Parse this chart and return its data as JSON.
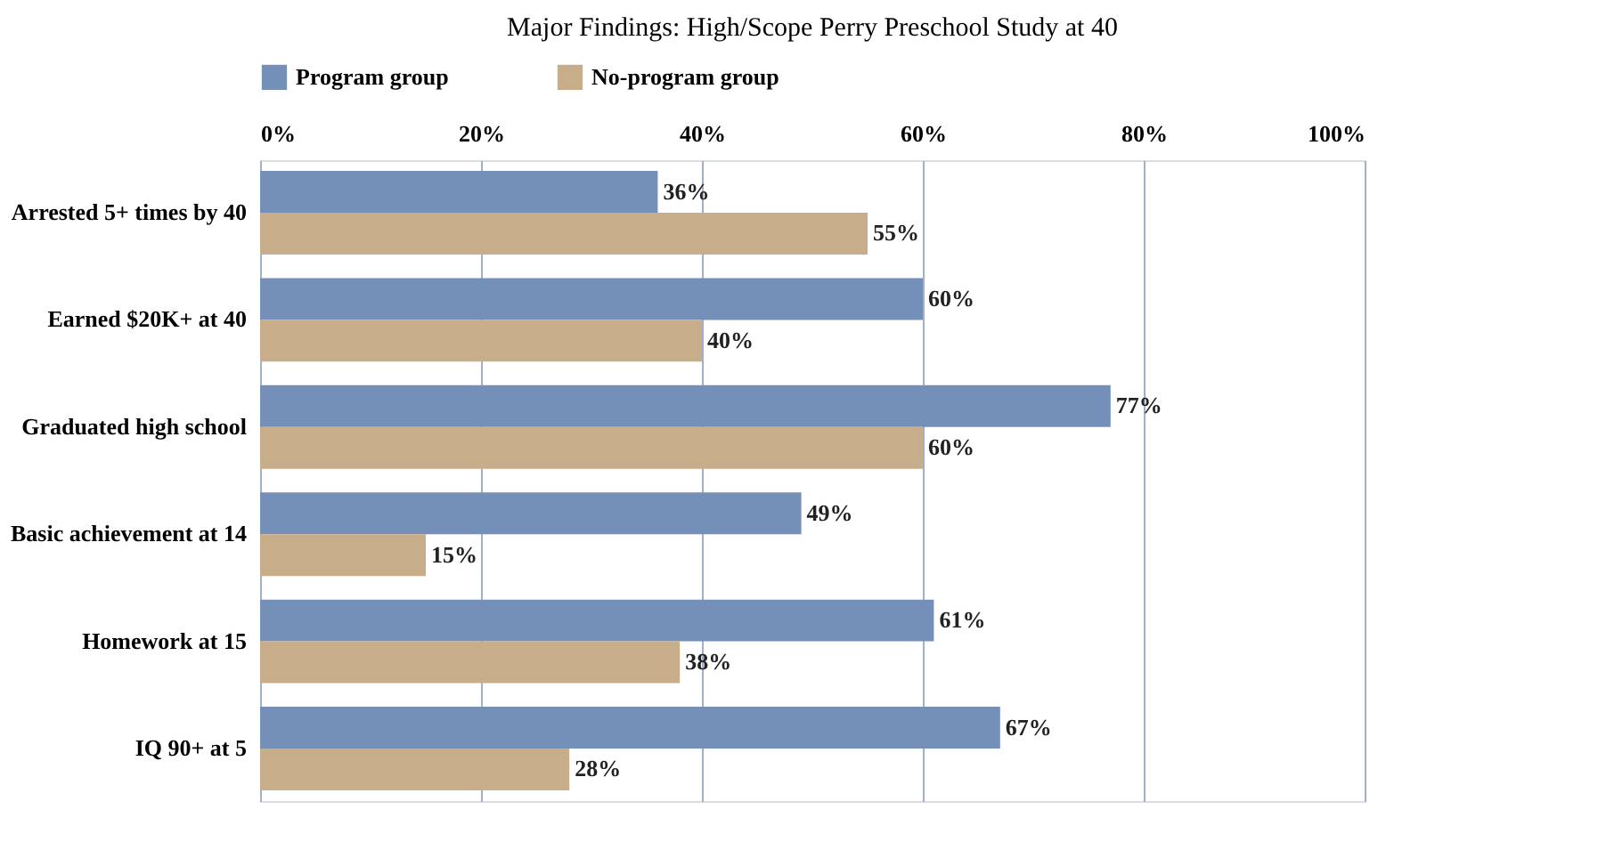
{
  "chart_data": {
    "type": "bar",
    "orientation": "horizontal",
    "title": "Major Findings: High/Scope Perry Preschool Study at 40",
    "categories": [
      "Arrested 5+ times by 40",
      "Earned $20K+ at 40",
      "Graduated high school",
      "Basic achievement at 14",
      "Homework at 15",
      "IQ 90+ at 5"
    ],
    "series": [
      {
        "name": "Program group",
        "color": "#7590b8",
        "values": [
          36,
          60,
          77,
          49,
          61,
          67
        ],
        "value_labels": [
          "36%",
          "60%",
          "77%",
          "49%",
          "61%",
          "67%"
        ]
      },
      {
        "name": "No-program group",
        "color": "#c8ad8a",
        "values": [
          55,
          40,
          60,
          15,
          38,
          28
        ],
        "value_labels": [
          "55%",
          "40%",
          "60%",
          "15%",
          "38%",
          "28%"
        ]
      }
    ],
    "xlim": [
      0,
      100
    ],
    "xticks": [
      {
        "value": 0,
        "label": "0%"
      },
      {
        "value": 20,
        "label": "20%"
      },
      {
        "value": 40,
        "label": "40%"
      },
      {
        "value": 60,
        "label": "60%"
      },
      {
        "value": 80,
        "label": "80%"
      },
      {
        "value": 100,
        "label": "100%"
      }
    ],
    "grid": "x",
    "legend": "top"
  }
}
